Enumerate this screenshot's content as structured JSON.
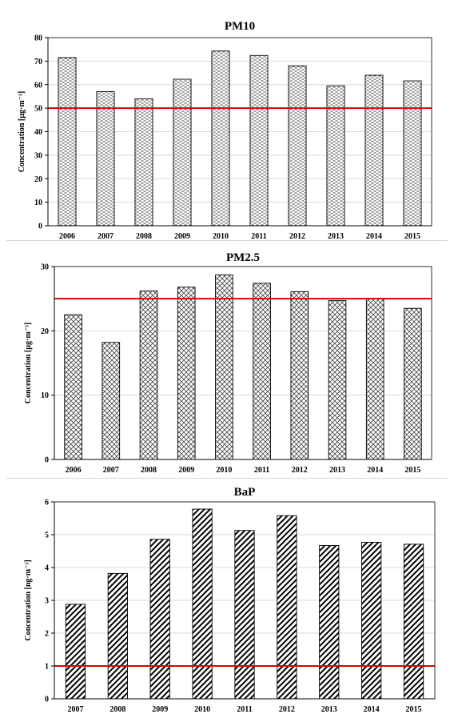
{
  "chart_data": [
    {
      "type": "bar",
      "title": "PM10",
      "ylabel": "Concentration [µg·m⁻³]",
      "categories": [
        "2006",
        "2007",
        "2008",
        "2009",
        "2010",
        "2011",
        "2012",
        "2013",
        "2014",
        "2015"
      ],
      "values": [
        71.5,
        57,
        54,
        62.3,
        74.3,
        72.4,
        68,
        59.5,
        64,
        61.6
      ],
      "ylim": [
        0,
        80
      ],
      "yticks": [
        0,
        10,
        20,
        30,
        40,
        50,
        60,
        70,
        80
      ],
      "limit_line": 50,
      "limit_color": "#e00000",
      "pattern": "dashes",
      "grid": true
    },
    {
      "type": "bar",
      "title": "PM2.5",
      "ylabel": "Concentration [µg·m⁻³]",
      "categories": [
        "2006",
        "2007",
        "2008",
        "2009",
        "2010",
        "2011",
        "2012",
        "2013",
        "2014",
        "2015"
      ],
      "values": [
        22.5,
        18.2,
        26.2,
        26.8,
        28.7,
        27.4,
        26.1,
        24.7,
        25,
        23.5
      ],
      "ylim": [
        0,
        30
      ],
      "yticks": [
        0,
        10,
        20,
        30
      ],
      "limit_line": 25,
      "limit_color": "#e00000",
      "pattern": "crosshatch",
      "grid": true
    },
    {
      "type": "bar",
      "title": "BaP",
      "ylabel": "Concentration [ng·m⁻³]",
      "categories": [
        "2007",
        "2008",
        "2009",
        "2010",
        "2011",
        "2012",
        "2013",
        "2014",
        "2015"
      ],
      "values": [
        2.88,
        3.82,
        4.86,
        5.78,
        5.13,
        5.58,
        4.67,
        4.77,
        4.71
      ],
      "ylim": [
        0,
        6
      ],
      "yticks": [
        0,
        1,
        2,
        3,
        4,
        5,
        6
      ],
      "limit_line": 1,
      "limit_color": "#e00000",
      "pattern": "diagonal",
      "grid": true
    }
  ]
}
